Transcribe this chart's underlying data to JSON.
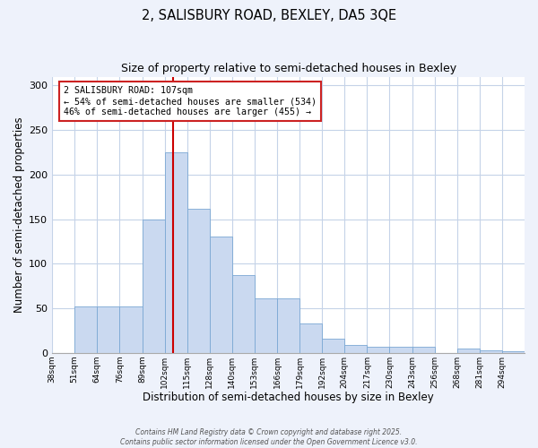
{
  "title": "2, SALISBURY ROAD, BEXLEY, DA5 3QE",
  "subtitle": "Size of property relative to semi-detached houses in Bexley",
  "xlabel": "Distribution of semi-detached houses by size in Bexley",
  "ylabel": "Number of semi-detached properties",
  "bin_labels": [
    "38sqm",
    "51sqm",
    "64sqm",
    "76sqm",
    "89sqm",
    "102sqm",
    "115sqm",
    "128sqm",
    "140sqm",
    "153sqm",
    "166sqm",
    "179sqm",
    "192sqm",
    "204sqm",
    "217sqm",
    "230sqm",
    "243sqm",
    "256sqm",
    "268sqm",
    "281sqm",
    "294sqm"
  ],
  "bar_heights": [
    0,
    52,
    52,
    52,
    150,
    225,
    162,
    130,
    87,
    61,
    61,
    33,
    16,
    9,
    7,
    7,
    7,
    0,
    5,
    3,
    2
  ],
  "bar_color": "#cad9f0",
  "bar_edge_color": "#7ba8d4",
  "marker_line_color": "#cc0000",
  "ylim": [
    0,
    310
  ],
  "yticks": [
    0,
    50,
    100,
    150,
    200,
    250,
    300
  ],
  "annotation_title": "2 SALISBURY ROAD: 107sqm",
  "annotation_line1": "← 54% of semi-detached houses are smaller (534)",
  "annotation_line2": "46% of semi-detached houses are larger (455) →",
  "footer1": "Contains HM Land Registry data © Crown copyright and database right 2025.",
  "footer2": "Contains public sector information licensed under the Open Government Licence v3.0.",
  "bg_color": "#eef2fb",
  "plot_bg_color": "#ffffff",
  "grid_color": "#c5d3e8"
}
